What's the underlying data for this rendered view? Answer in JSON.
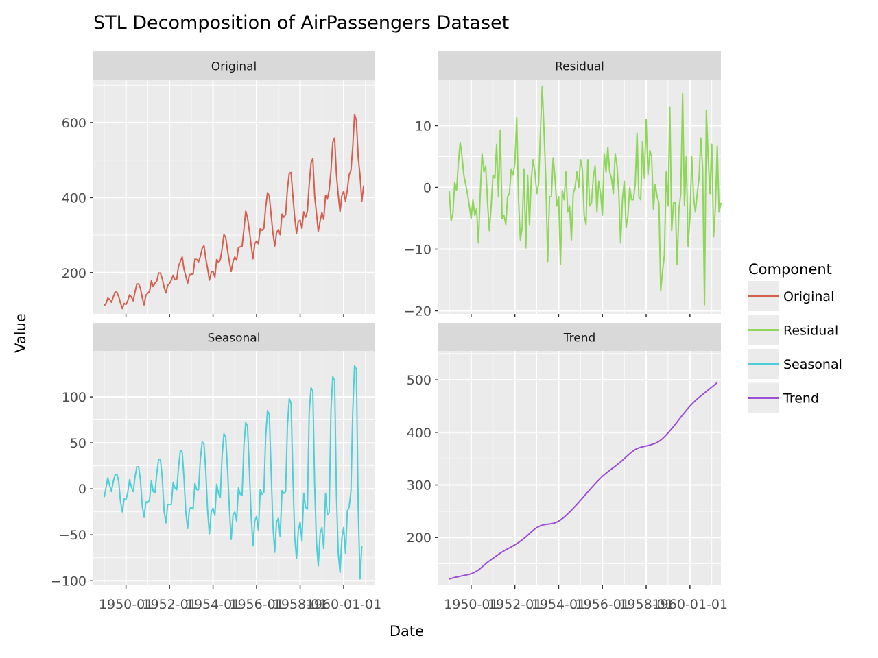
{
  "chart_data": {
    "type": "line",
    "title": "STL Decomposition of AirPassengers Dataset",
    "xlabel": "Date",
    "ylabel": "Value",
    "legend": {
      "title": "Component",
      "placement": "right",
      "items": [
        {
          "name": "Original",
          "color": "#D55E4E"
        },
        {
          "name": "Residual",
          "color": "#8DD658"
        },
        {
          "name": "Seasonal",
          "color": "#4ECED6"
        },
        {
          "name": "Trend",
          "color": "#9B4ED6"
        }
      ]
    },
    "x_ticks": [
      "1950-01-01",
      "1952-01-01",
      "1954-01-01",
      "1956-01-01",
      "1958-01-01",
      "1960-01-01"
    ],
    "x_tick_labels": [
      "1950-01",
      "1952-01",
      "1954-01",
      "1956-01",
      "1958-01",
      "1960-01-01"
    ],
    "x_start": "1949-01",
    "x_step": "1 month",
    "xlim": [
      "1948-07-01",
      "1961-06-01"
    ],
    "grid": true,
    "panels": [
      {
        "name": "Original",
        "color": "#D55E4E",
        "ylim": [
          90,
          715
        ],
        "y_ticks": [
          200,
          400,
          600
        ],
        "y_tick_labels": [
          "200",
          "400",
          "600"
        ],
        "values": [
          112,
          118,
          132,
          129,
          121,
          135,
          148,
          148,
          136,
          119,
          104,
          118,
          115,
          126,
          141,
          135,
          125,
          149,
          170,
          170,
          158,
          133,
          114,
          140,
          145,
          150,
          178,
          163,
          172,
          178,
          199,
          199,
          184,
          162,
          146,
          166,
          171,
          180,
          193,
          181,
          183,
          218,
          230,
          242,
          209,
          191,
          172,
          194,
          196,
          196,
          236,
          235,
          229,
          243,
          264,
          272,
          237,
          211,
          180,
          201,
          204,
          188,
          235,
          227,
          234,
          264,
          302,
          293,
          259,
          229,
          203,
          229,
          242,
          233,
          267,
          269,
          270,
          315,
          364,
          347,
          312,
          274,
          237,
          278,
          284,
          277,
          317,
          313,
          318,
          374,
          413,
          405,
          355,
          306,
          271,
          306,
          315,
          301,
          356,
          348,
          355,
          422,
          465,
          467,
          404,
          347,
          305,
          336,
          340,
          318,
          362,
          348,
          363,
          435,
          491,
          505,
          404,
          359,
          310,
          337,
          360,
          342,
          406,
          396,
          420,
          472,
          548,
          559,
          463,
          407,
          362,
          405,
          417,
          391,
          419,
          461,
          472,
          535,
          622,
          606,
          508,
          461,
          390,
          432
        ]
      },
      {
        "name": "Residual",
        "color": "#8DD658",
        "ylim": [
          -20.5,
          17.5
        ],
        "y_ticks": [
          -20,
          -10,
          0,
          10
        ],
        "y_tick_labels": [
          "−20",
          "−10",
          "0",
          "10"
        ],
        "values": [
          -0.5,
          -5.4,
          -4.2,
          0.8,
          -0.5,
          4.0,
          7.3,
          5.0,
          2.0,
          0.5,
          -1.0,
          -3.0,
          -5.0,
          -2.0,
          -4.5,
          -3.5,
          -9.0,
          -1.0,
          5.5,
          2.5,
          3.5,
          -2.5,
          -7.0,
          -3.0,
          2.0,
          1.5,
          7.0,
          -1.5,
          9.3,
          -5.0,
          -4.5,
          -6.0,
          -1.5,
          -1.0,
          3.0,
          2.0,
          4.0,
          11.3,
          -2.0,
          -8.5,
          -6.5,
          3.0,
          -9.8,
          2.0,
          -6.0,
          1.5,
          4.5,
          2.5,
          -1.0,
          0.5,
          9.0,
          16.4,
          9.0,
          1.0,
          -12.0,
          -1.5,
          -1.5,
          4.8,
          1.5,
          -3.0,
          -1.5,
          -12.5,
          -0.5,
          -2.0,
          2.5,
          -4.0,
          -3.0,
          -8.5,
          -1.0,
          0.0,
          2.5,
          0.0,
          4.5,
          3.0,
          -4.5,
          -6.0,
          4.5,
          -3.0,
          -2.5,
          1.5,
          3.5,
          -4.0,
          1.0,
          -1.0,
          -4.5,
          5.5,
          2.5,
          6.5,
          2.5,
          1.5,
          -1.0,
          5.5,
          3.5,
          -1.0,
          -9.0,
          -2.0,
          1.0,
          -6.5,
          -4.5,
          0.0,
          -2.0,
          -2.0,
          0.5,
          8.8,
          -1.5,
          -2.0,
          7.5,
          1.5,
          11.0,
          2.0,
          6.0,
          5.0,
          -3.5,
          0.5,
          -1.5,
          -2.5,
          -16.7,
          -13.5,
          -11.0,
          2.5,
          -3.0,
          13.0,
          -7.0,
          -2.5,
          -2.5,
          -12.5,
          -3.5,
          -1.0,
          15.2,
          -3.0,
          5.0,
          -9.5,
          -5.0,
          5.0,
          -1.5,
          -4.0,
          -1.0,
          1.5,
          8.0,
          3.0,
          -19.0,
          12.5,
          5.0,
          -1.0,
          7.0,
          -8.0,
          -3.0,
          6.7,
          -4.0,
          -2.5
        ]
      },
      {
        "name": "Seasonal",
        "color": "#4ECED6",
        "ylim": [
          -105,
          150
        ],
        "y_ticks": [
          -100,
          -50,
          0,
          50,
          100
        ],
        "y_tick_labels": [
          "−100",
          "−50",
          "0",
          "50",
          "100"
        ],
        "values": [
          -9,
          1,
          12,
          4,
          -3,
          8,
          15,
          16,
          8,
          -14,
          -25,
          -11,
          -12,
          -4,
          10,
          2,
          -3,
          13,
          24,
          24,
          9,
          -19,
          -31,
          -14,
          -15,
          -12,
          9,
          -3,
          -4,
          17,
          32,
          32,
          12,
          -24,
          -37,
          -17,
          -17,
          -17,
          7,
          1,
          -1,
          24,
          42,
          40,
          11,
          -26,
          -43,
          -22,
          -20,
          -22,
          6,
          -1,
          -1,
          32,
          51,
          49,
          19,
          -24,
          -49,
          -25,
          -21,
          -29,
          5,
          -5,
          -9,
          36,
          60,
          56,
          20,
          -21,
          -55,
          -29,
          -25,
          -35,
          1,
          -6,
          -7,
          46,
          72,
          68,
          21,
          -29,
          -62,
          -35,
          -30,
          -45,
          -1,
          -6,
          -4,
          56,
          85,
          81,
          20,
          -40,
          -69,
          -36,
          -32,
          -52,
          -2,
          -5,
          -3,
          68,
          98,
          93,
          14,
          -52,
          -76,
          -46,
          -36,
          -57,
          -5,
          -20,
          -22,
          83,
          110,
          106,
          4,
          -58,
          -84,
          -49,
          -42,
          -65,
          -5,
          -28,
          -26,
          86,
          122,
          118,
          -6,
          -70,
          -91,
          -54,
          -42,
          -70,
          -24,
          -20,
          -3,
          84,
          134,
          130,
          -19,
          -98,
          -62
        ]
      },
      {
        "name": "Trend",
        "color": "#9B4ED6",
        "ylim": [
          109,
          555
        ],
        "y_ticks": [
          200,
          300,
          400,
          500
        ],
        "y_tick_labels": [
          "200",
          "300",
          "400",
          "500"
        ],
        "values": [
          121.0,
          122.0,
          123.0,
          124.0,
          124.8,
          125.5,
          126.2,
          127.0,
          127.8,
          128.5,
          129.2,
          130.0,
          131.0,
          132.5,
          134.0,
          136.0,
          138.3,
          141.0,
          144.0,
          147.0,
          150.0,
          153.0,
          155.5,
          158.0,
          160.5,
          163.0,
          165.5,
          168.0,
          170.3,
          172.5,
          174.6,
          176.6,
          178.5,
          180.3,
          182.2,
          184.2,
          186.2,
          188.3,
          190.6,
          193.0,
          195.6,
          198.3,
          201.2,
          204.3,
          207.5,
          210.7,
          213.8,
          216.5,
          218.8,
          220.7,
          222.3,
          223.5,
          224.4,
          225.0,
          225.4,
          225.8,
          226.3,
          227.0,
          228.0,
          229.4,
          231.2,
          233.4,
          236.0,
          238.8,
          241.9,
          245.1,
          248.5,
          252.0,
          255.6,
          259.3,
          263.0,
          266.9,
          270.8,
          274.7,
          278.7,
          282.7,
          286.7,
          290.7,
          294.6,
          298.5,
          302.3,
          306.0,
          309.6,
          313.0,
          316.3,
          319.4,
          322.3,
          325.1,
          327.8,
          330.4,
          333.0,
          335.6,
          338.3,
          341.1,
          344.0,
          347.0,
          350.1,
          353.3,
          356.5,
          359.6,
          362.5,
          365.2,
          367.4,
          369.2,
          370.6,
          371.7,
          372.6,
          373.4,
          374.2,
          375.0,
          375.9,
          376.9,
          378.0,
          379.3,
          380.9,
          382.9,
          385.4,
          388.3,
          391.6,
          395.2,
          399.0,
          402.9,
          406.9,
          411.1,
          415.5,
          420.0,
          424.5,
          429.0,
          433.4,
          437.7,
          441.9,
          446.0,
          449.9,
          453.6,
          457.1,
          460.4,
          463.5,
          466.5,
          469.4,
          472.2,
          475.0,
          477.8,
          480.6,
          483.4,
          486.2,
          489.0,
          491.9,
          494.8
        ]
      }
    ]
  }
}
